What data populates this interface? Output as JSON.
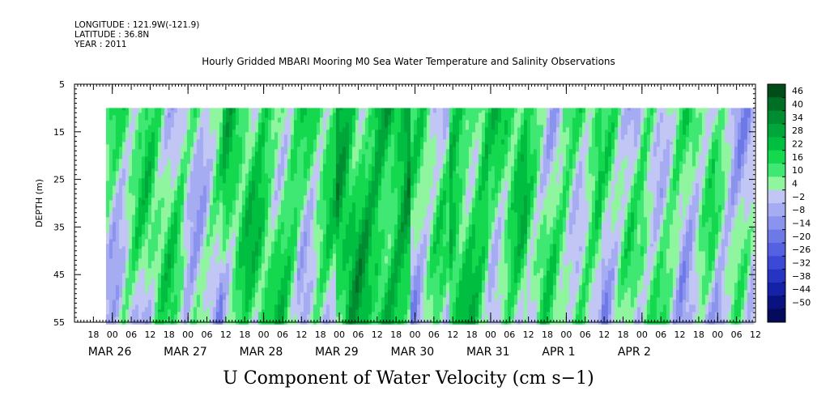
{
  "header": {
    "longitude": "LONGITUDE : 121.9W(-121.9)",
    "latitude": "LATITUDE : 36.8N",
    "year": "YEAR : 2011"
  },
  "chart_data": {
    "type": "heatmap",
    "title": "Hourly Gridded MBARI Mooring M0 Sea Water Temperature and Salinity Observations",
    "subtitle": "U Component of Water Velocity (cm s−1)",
    "ylabel": "DEPTH (m)",
    "xlabel": "",
    "ylim": [
      55,
      5
    ],
    "y_ticks": [
      "5",
      "15",
      "25",
      "35",
      "45",
      "55"
    ],
    "data_depth_range": [
      10,
      55
    ],
    "x_range_hours_from_mar26_00": [
      -12,
      204
    ],
    "data_x_range_hours_from_mar26_00": [
      -2,
      203
    ],
    "hour_ticks": [
      "18",
      "00",
      "06",
      "12",
      "18",
      "00",
      "06",
      "12",
      "18",
      "00",
      "06",
      "12",
      "18",
      "00",
      "06",
      "12",
      "18",
      "00",
      "06",
      "12",
      "18",
      "00",
      "06",
      "12",
      "18",
      "00",
      "06",
      "12",
      "18",
      "00",
      "06",
      "12",
      "18",
      "00",
      "06",
      "12"
    ],
    "day_labels": [
      "MAR 26",
      "MAR 27",
      "MAR 28",
      "MAR 29",
      "MAR 30",
      "MAR 31",
      "APR  1",
      "APR  2"
    ],
    "colorbar": {
      "levels": [
        "46",
        "40",
        "34",
        "28",
        "22",
        "16",
        "10",
        "4",
        "−2",
        "−8",
        "−14",
        "−20",
        "−26",
        "−32",
        "−38",
        "−44",
        "−50"
      ],
      "colors": [
        "#004d1a",
        "#006f26",
        "#008c30",
        "#00a63a",
        "#00bf40",
        "#14d94f",
        "#3fe872",
        "#8ff59f",
        "#c2c6f5",
        "#a5acf2",
        "#8a93ee",
        "#6e79e8",
        "#5461e0",
        "#3b49d6",
        "#2634c4",
        "#1522a8",
        "#0a1280",
        "#050a5c"
      ]
    },
    "field": {
      "columns": [
        "-2h…10h:+8",
        "10h…22h:+10",
        "22h…34h:+6",
        "34h…46h:+14",
        "46h…58h:+16",
        "58h…70h:+10",
        "70h…82h:+22",
        "82h…94h:+26",
        "94h…106h:+6",
        "106h…118h:+20",
        "118h…130h:+14",
        "130h…142h:+8",
        "142h…154h:+12",
        "154h…166h:+4",
        "166h…178h:+10",
        "178h…190h:+6",
        "190h…203h:+2"
      ]
    }
  }
}
